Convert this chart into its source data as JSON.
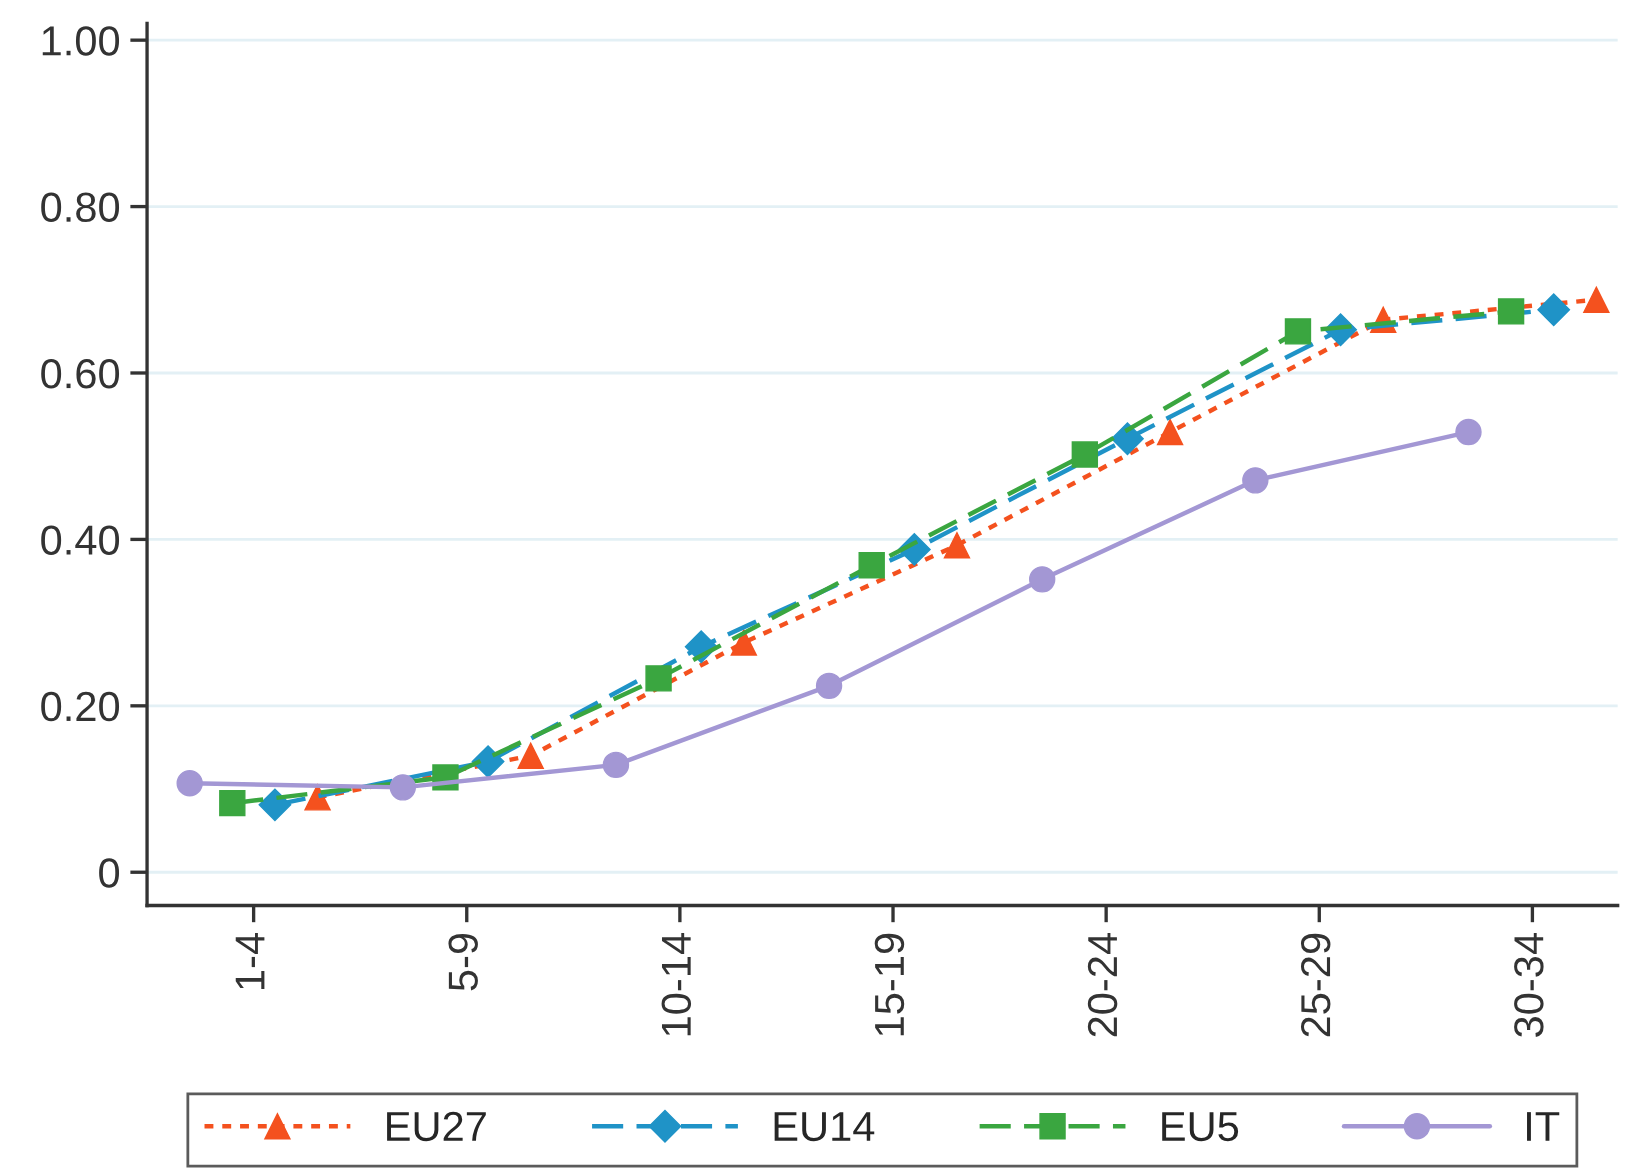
{
  "chart_data": {
    "type": "line",
    "categories": [
      "1-4",
      "5-9",
      "10-14",
      "15-19",
      "20-24",
      "25-29",
      "30-34"
    ],
    "ylim": [
      -0.04,
      1.02
    ],
    "yticks": [
      {
        "value": 0,
        "label": "0"
      },
      {
        "value": 0.2,
        "label": "0.20"
      },
      {
        "value": 0.4,
        "label": "0.40"
      },
      {
        "value": 0.6,
        "label": "0.60"
      },
      {
        "value": 0.8,
        "label": "0.80"
      },
      {
        "value": 1.0,
        "label": "1.00"
      }
    ],
    "grid": "y",
    "legend": "bottom",
    "series": [
      {
        "name": "EU27",
        "color": "#f4511e",
        "marker": "triangle",
        "line_style": "dotted",
        "values": [
          0.09,
          0.14,
          0.276,
          0.393,
          0.529,
          0.664,
          0.688
        ]
      },
      {
        "name": "EU14",
        "color": "#1f93c7",
        "marker": "diamond",
        "line_style": "dashed",
        "values": [
          0.081,
          0.133,
          0.271,
          0.388,
          0.521,
          0.652,
          0.676
        ]
      },
      {
        "name": "EU5",
        "color": "#3aa640",
        "marker": "square",
        "line_style": "dashed",
        "values": [
          0.083,
          0.114,
          0.233,
          0.369,
          0.502,
          0.65,
          0.674
        ]
      },
      {
        "name": "IT",
        "color": "#a397d4",
        "marker": "circle",
        "line_style": "solid",
        "values": [
          0.107,
          0.102,
          0.129,
          0.224,
          0.352,
          0.471,
          0.529
        ]
      }
    ]
  }
}
